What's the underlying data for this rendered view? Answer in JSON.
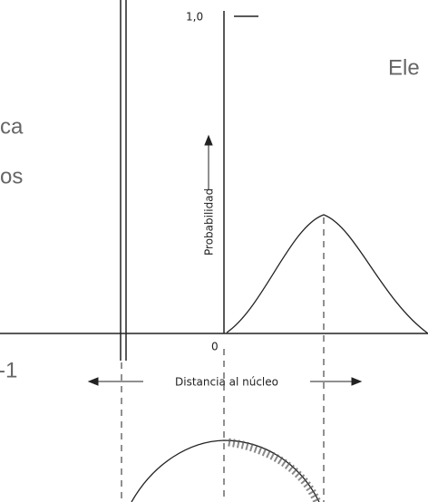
{
  "slide": {
    "title_fragment": "Ele",
    "line_1_fragment": "ca",
    "line_2_fragment": "os",
    "caption_fragment": "-1"
  },
  "figure": {
    "y_top_label": "1,0",
    "y_zero_label": "0",
    "y_axis_label": "Probabilidad",
    "x_axis_label": "Distancia al núcleo"
  }
}
